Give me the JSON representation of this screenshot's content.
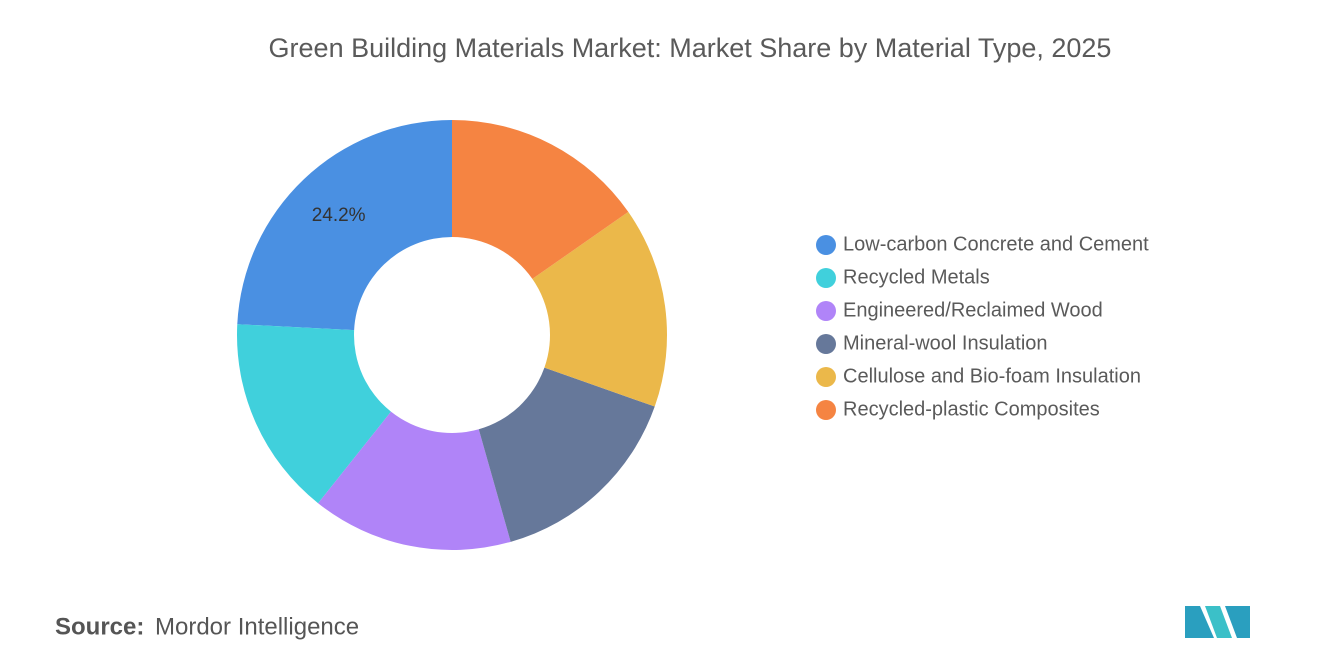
{
  "chart_data": {
    "type": "donut",
    "title": "Green Building Materials Market: Market Share by Material Type, 2025",
    "categories": [
      "Low-carbon Concrete and Cement",
      "Recycled Metals",
      "Engineered/Reclaimed Wood",
      "Mineral-wool Insulation",
      "Cellulose and Bio-foam Insulation",
      "Recycled-plastic Composites"
    ],
    "values": [
      24.2,
      15.1,
      15.1,
      15.2,
      15.1,
      15.3
    ],
    "value_labels": [
      "24.2%",
      null,
      null,
      null,
      null,
      null
    ],
    "colors": [
      "#4a90e2",
      "#40d0dc",
      "#b084f8",
      "#66789a",
      "#ebb84a",
      "#f58442"
    ],
    "legend": "right"
  },
  "source": {
    "label": "Source:",
    "name": "Mordor Intelligence"
  }
}
